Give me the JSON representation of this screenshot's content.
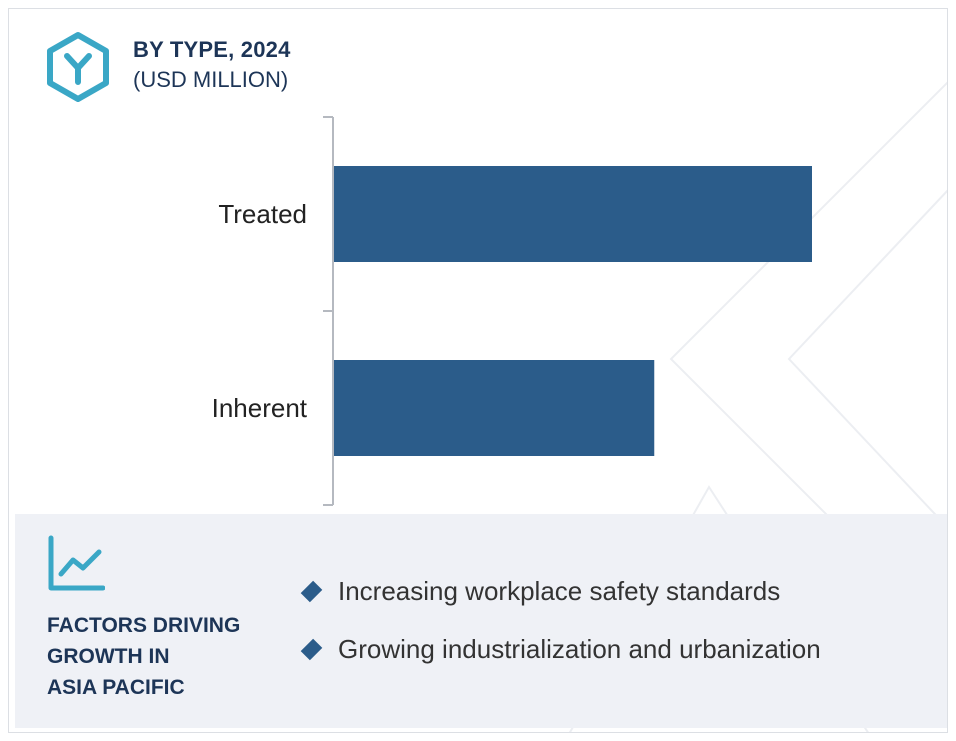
{
  "header": {
    "title": "BY TYPE, 2024",
    "subtitle": "(USD MILLION)",
    "logo_icon": "hexagon-y-icon"
  },
  "colors": {
    "bar": "#2b5c8a",
    "accent": "#3aa7c6",
    "heading": "#1d3557",
    "factors_bg": "#eff1f6"
  },
  "chart_data": {
    "type": "bar",
    "orientation": "horizontal",
    "categories": [
      "Treated",
      "Inherent"
    ],
    "values": [
      100,
      67
    ],
    "xlim": [
      0,
      100
    ],
    "title": "BY TYPE, 2024",
    "subtitle": "(USD MILLION)",
    "xlabel": "",
    "ylabel": "",
    "grid": false,
    "legend": "none"
  },
  "factors": {
    "icon": "trend-chart-icon",
    "heading_lines": [
      "FACTORS DRIVING",
      "GROWTH IN",
      "ASIA PACIFIC"
    ],
    "items": [
      "Increasing workplace safety standards",
      "Growing industrialization and urbanization"
    ]
  }
}
